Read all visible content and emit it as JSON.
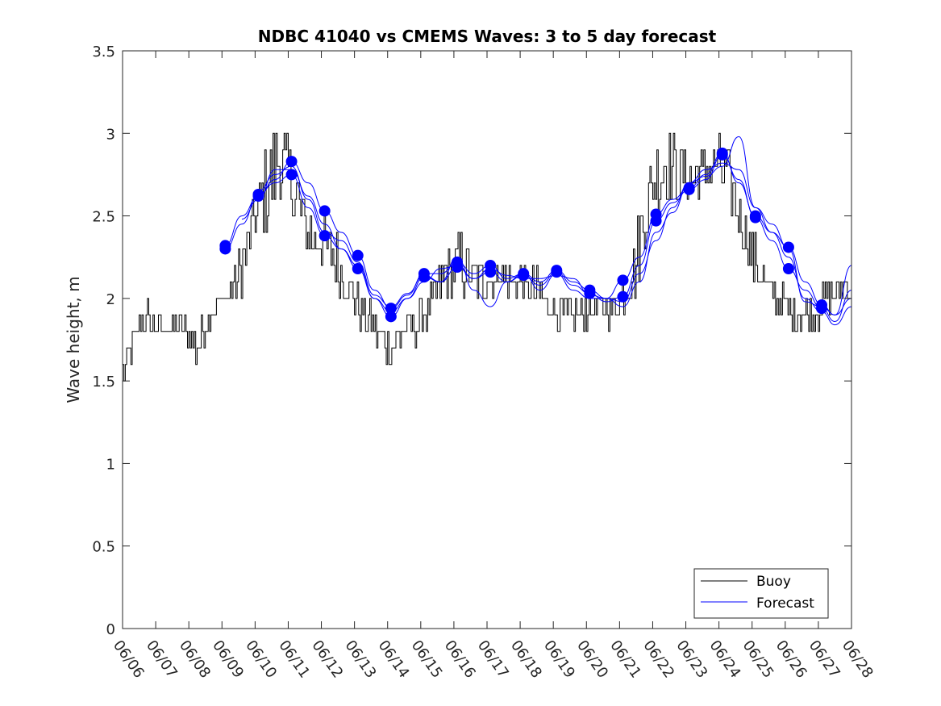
{
  "chart_data": {
    "type": "line",
    "title": "NDBC 41040 vs CMEMS Waves: 3 to 5 day forecast",
    "xlabel": "",
    "ylabel": "Wave height, m",
    "ylim": [
      0,
      3.5
    ],
    "xlim": [
      0,
      22
    ],
    "yticks": [
      "0",
      "0.5",
      "1",
      "1.5",
      "2",
      "2.5",
      "3",
      "3.5"
    ],
    "xtick_labels": [
      "06/06",
      "06/07",
      "06/08",
      "06/09",
      "06/10",
      "06/11",
      "06/12",
      "06/13",
      "06/14",
      "06/15",
      "06/16",
      "06/17",
      "06/18",
      "06/19",
      "06/20",
      "06/21",
      "06/22",
      "06/23",
      "06/24",
      "06/25",
      "06/26",
      "06/27",
      "06/28"
    ],
    "legend": {
      "placement": "bottom-right",
      "entries": [
        "Buoy",
        "Forecast"
      ]
    },
    "colors": {
      "buoy": "#000000",
      "forecast": "#0000ff",
      "axis": "#262626"
    },
    "buoy": {
      "name": "Buoy",
      "x": [
        0,
        0.25,
        0.5,
        0.75,
        1.0,
        1.25,
        1.5,
        1.75,
        2.0,
        2.25,
        2.5,
        2.75,
        3.0,
        3.25,
        3.5,
        3.75,
        4.0,
        4.25,
        4.5,
        4.75,
        5.0,
        5.25,
        5.5,
        5.75,
        6.0,
        6.25,
        6.5,
        6.75,
        7.0,
        7.25,
        7.5,
        7.75,
        8.0,
        8.25,
        8.5,
        8.75,
        9.0,
        9.25,
        9.5,
        9.75,
        10.0,
        10.25,
        10.5,
        10.75,
        11.0,
        11.25,
        11.5,
        11.75,
        12.0,
        12.25,
        12.5,
        12.75,
        13.0,
        13.25,
        13.5,
        13.75,
        14.0,
        14.25,
        14.5,
        14.75,
        15.0,
        15.25,
        15.5,
        15.75,
        16.0,
        16.25,
        16.5,
        16.75,
        17.0,
        17.25,
        17.5,
        17.75,
        18.0,
        18.25,
        18.5,
        18.75,
        19.0,
        19.25,
        19.5,
        19.75,
        20.0,
        20.25,
        20.5,
        20.75,
        21.0,
        21.25,
        21.5,
        21.75,
        22.0
      ],
      "values": [
        1.55,
        1.7,
        1.85,
        1.85,
        1.85,
        1.8,
        1.85,
        1.82,
        1.8,
        1.7,
        1.8,
        1.95,
        2.0,
        2.05,
        2.1,
        2.3,
        2.5,
        2.65,
        2.75,
        2.85,
        2.75,
        2.6,
        2.45,
        2.35,
        2.35,
        2.3,
        2.2,
        2.1,
        2.0,
        1.9,
        1.85,
        1.75,
        1.75,
        1.75,
        1.8,
        1.85,
        1.85,
        1.95,
        2.05,
        2.15,
        2.2,
        2.2,
        2.15,
        2.1,
        2.1,
        2.1,
        2.15,
        2.1,
        2.1,
        2.05,
        2.05,
        2.0,
        1.95,
        1.9,
        1.9,
        1.9,
        1.92,
        1.95,
        1.95,
        1.95,
        2.0,
        2.1,
        2.25,
        2.5,
        2.7,
        2.8,
        2.8,
        2.75,
        2.75,
        2.75,
        2.75,
        2.8,
        2.8,
        2.75,
        2.55,
        2.4,
        2.25,
        2.15,
        2.05,
        2.0,
        1.95,
        1.92,
        1.9,
        1.9,
        1.95,
        2.0,
        2.05,
        2.05,
        2.1
      ],
      "noise": [
        0.06,
        0.15,
        0.06,
        0.15,
        0.06,
        0.06,
        0.06,
        0.18,
        0.06,
        0.18,
        0.06,
        0.06,
        0.06,
        0.06,
        0.2,
        0.16,
        0.15,
        0.25,
        0.35,
        0.3,
        0.2,
        0.25,
        0.2,
        0.2,
        0.15,
        0.15,
        0.2,
        0.15,
        0.15,
        0.15,
        0.15,
        0.12,
        0.15,
        0.12,
        0.12,
        0.12,
        0.12,
        0.12,
        0.12,
        0.15,
        0.15,
        0.25,
        0.12,
        0.12,
        0.08,
        0.08,
        0.08,
        0.12,
        0.1,
        0.12,
        0.12,
        0.12,
        0.1,
        0.1,
        0.1,
        0.1,
        0.1,
        0.1,
        0.1,
        0.12,
        0.12,
        0.15,
        0.25,
        0.25,
        0.25,
        0.3,
        0.25,
        0.2,
        0.2,
        0.15,
        0.18,
        0.18,
        0.18,
        0.18,
        0.18,
        0.15,
        0.15,
        0.15,
        0.12,
        0.12,
        0.12,
        0.12,
        0.12,
        0.12,
        0.12,
        0.12,
        0.12,
        0.12,
        0.12
      ]
    },
    "forecast_markers": {
      "name": "Forecast",
      "points": [
        {
          "x": 3.1,
          "y": 2.32
        },
        {
          "x": 3.1,
          "y": 2.3
        },
        {
          "x": 4.1,
          "y": 2.62
        },
        {
          "x": 4.1,
          "y": 2.63
        },
        {
          "x": 5.1,
          "y": 2.83
        },
        {
          "x": 5.1,
          "y": 2.75
        },
        {
          "x": 6.1,
          "y": 2.53
        },
        {
          "x": 6.1,
          "y": 2.38
        },
        {
          "x": 7.1,
          "y": 2.26
        },
        {
          "x": 7.1,
          "y": 2.18
        },
        {
          "x": 8.1,
          "y": 1.94
        },
        {
          "x": 8.1,
          "y": 1.89
        },
        {
          "x": 9.1,
          "y": 2.15
        },
        {
          "x": 9.1,
          "y": 2.13
        },
        {
          "x": 10.1,
          "y": 2.22
        },
        {
          "x": 10.1,
          "y": 2.19
        },
        {
          "x": 11.1,
          "y": 2.2
        },
        {
          "x": 11.1,
          "y": 2.16
        },
        {
          "x": 12.1,
          "y": 2.15
        },
        {
          "x": 12.1,
          "y": 2.14
        },
        {
          "x": 13.1,
          "y": 2.17
        },
        {
          "x": 13.1,
          "y": 2.16
        },
        {
          "x": 14.1,
          "y": 2.05
        },
        {
          "x": 14.1,
          "y": 2.03
        },
        {
          "x": 15.1,
          "y": 2.11
        },
        {
          "x": 15.1,
          "y": 2.01
        },
        {
          "x": 16.1,
          "y": 2.51
        },
        {
          "x": 16.1,
          "y": 2.47
        },
        {
          "x": 17.1,
          "y": 2.67
        },
        {
          "x": 17.1,
          "y": 2.66
        },
        {
          "x": 18.1,
          "y": 2.88
        },
        {
          "x": 18.1,
          "y": 2.87
        },
        {
          "x": 19.1,
          "y": 2.5
        },
        {
          "x": 19.1,
          "y": 2.49
        },
        {
          "x": 20.1,
          "y": 2.31
        },
        {
          "x": 20.1,
          "y": 2.18
        },
        {
          "x": 21.1,
          "y": 1.96
        },
        {
          "x": 21.1,
          "y": 1.94
        }
      ]
    },
    "forecast_series": [
      {
        "x": [
          3.1,
          3.6,
          4.1,
          4.6,
          5.1,
          5.6,
          6.1,
          6.6,
          7.1,
          7.6,
          8.1,
          8.6,
          9.1,
          9.6,
          10.1,
          10.6,
          11.1,
          11.6,
          12.1,
          12.6,
          13.1,
          13.6,
          14.1,
          14.6,
          15.1,
          15.6,
          16.1,
          16.6,
          17.1,
          17.6,
          18.1,
          18.6,
          19.1,
          19.6,
          20.1,
          20.6,
          21.1,
          21.5,
          22.0
        ],
        "values": [
          2.32,
          2.5,
          2.62,
          2.72,
          2.83,
          2.7,
          2.53,
          2.4,
          2.26,
          2.05,
          1.94,
          2.02,
          2.15,
          2.15,
          2.22,
          2.15,
          2.2,
          2.12,
          2.15,
          2.1,
          2.17,
          2.1,
          2.05,
          2.0,
          2.11,
          2.25,
          2.51,
          2.6,
          2.67,
          2.75,
          2.88,
          2.7,
          2.5,
          2.4,
          2.31,
          2.1,
          1.96,
          1.9,
          2.2
        ]
      },
      {
        "x": [
          3.1,
          3.6,
          4.1,
          4.6,
          5.1,
          5.6,
          6.1,
          6.6,
          7.1,
          7.6,
          8.1,
          8.6,
          9.1,
          9.6,
          10.1,
          10.6,
          11.1,
          11.6,
          12.1,
          12.6,
          13.1,
          13.6,
          14.1,
          14.6,
          15.1,
          15.6,
          16.1,
          16.6,
          17.1,
          17.6,
          18.1,
          18.6,
          19.1,
          19.6,
          20.1,
          20.6,
          21.1,
          21.5,
          22.0
        ],
        "values": [
          2.3,
          2.45,
          2.63,
          2.7,
          2.75,
          2.55,
          2.38,
          2.3,
          2.18,
          2.0,
          1.89,
          2.0,
          2.13,
          2.1,
          2.19,
          2.12,
          2.16,
          2.1,
          2.14,
          2.08,
          2.16,
          2.08,
          2.03,
          1.98,
          2.01,
          2.2,
          2.47,
          2.58,
          2.66,
          2.72,
          2.87,
          2.72,
          2.49,
          2.35,
          2.18,
          2.05,
          1.94,
          1.86,
          2.05
        ]
      },
      {
        "x": [
          3.6,
          4.1,
          4.6,
          5.1,
          5.6,
          6.1,
          6.6,
          7.1,
          7.6,
          8.1,
          8.6,
          9.1,
          9.6,
          10.1,
          10.6,
          11.1,
          11.6,
          12.1,
          12.6,
          13.1,
          13.6,
          14.1,
          14.6,
          15.1,
          15.6,
          16.1,
          16.6,
          17.1,
          17.6,
          18.1,
          18.6,
          19.1,
          19.6,
          20.1,
          20.6,
          21.1,
          21.5,
          22.0
        ],
        "values": [
          2.48,
          2.6,
          2.78,
          2.78,
          2.62,
          2.45,
          2.3,
          2.2,
          2.0,
          1.92,
          2.0,
          2.1,
          2.18,
          2.2,
          2.12,
          2.18,
          2.14,
          2.12,
          2.12,
          2.14,
          2.12,
          2.02,
          2.0,
          1.98,
          2.15,
          2.35,
          2.55,
          2.7,
          2.78,
          2.82,
          2.78,
          2.55,
          2.4,
          2.25,
          2.0,
          1.92,
          1.84,
          1.95
        ]
      },
      {
        "x": [
          4.1,
          4.6,
          5.1,
          5.6,
          6.1,
          6.6,
          7.1,
          7.6,
          8.1,
          8.6,
          9.1,
          9.6,
          10.1,
          10.6,
          11.1,
          11.6,
          12.1,
          12.6,
          13.1,
          13.6,
          14.1,
          14.6,
          15.1,
          15.6,
          16.1,
          16.6,
          17.1,
          17.6,
          18.1,
          18.6,
          19.1,
          19.6,
          20.1,
          20.6,
          21.1,
          21.5,
          22.0
        ],
        "values": [
          2.65,
          2.75,
          2.8,
          2.6,
          2.4,
          2.35,
          2.22,
          2.02,
          1.95,
          2.03,
          2.14,
          2.1,
          2.25,
          2.05,
          1.95,
          2.1,
          2.15,
          2.05,
          2.15,
          2.05,
          2.0,
          2.0,
          1.95,
          2.1,
          2.4,
          2.52,
          2.7,
          2.74,
          2.8,
          2.98,
          2.55,
          2.45,
          2.3,
          1.98,
          1.95,
          1.9,
          2.0
        ]
      }
    ]
  }
}
